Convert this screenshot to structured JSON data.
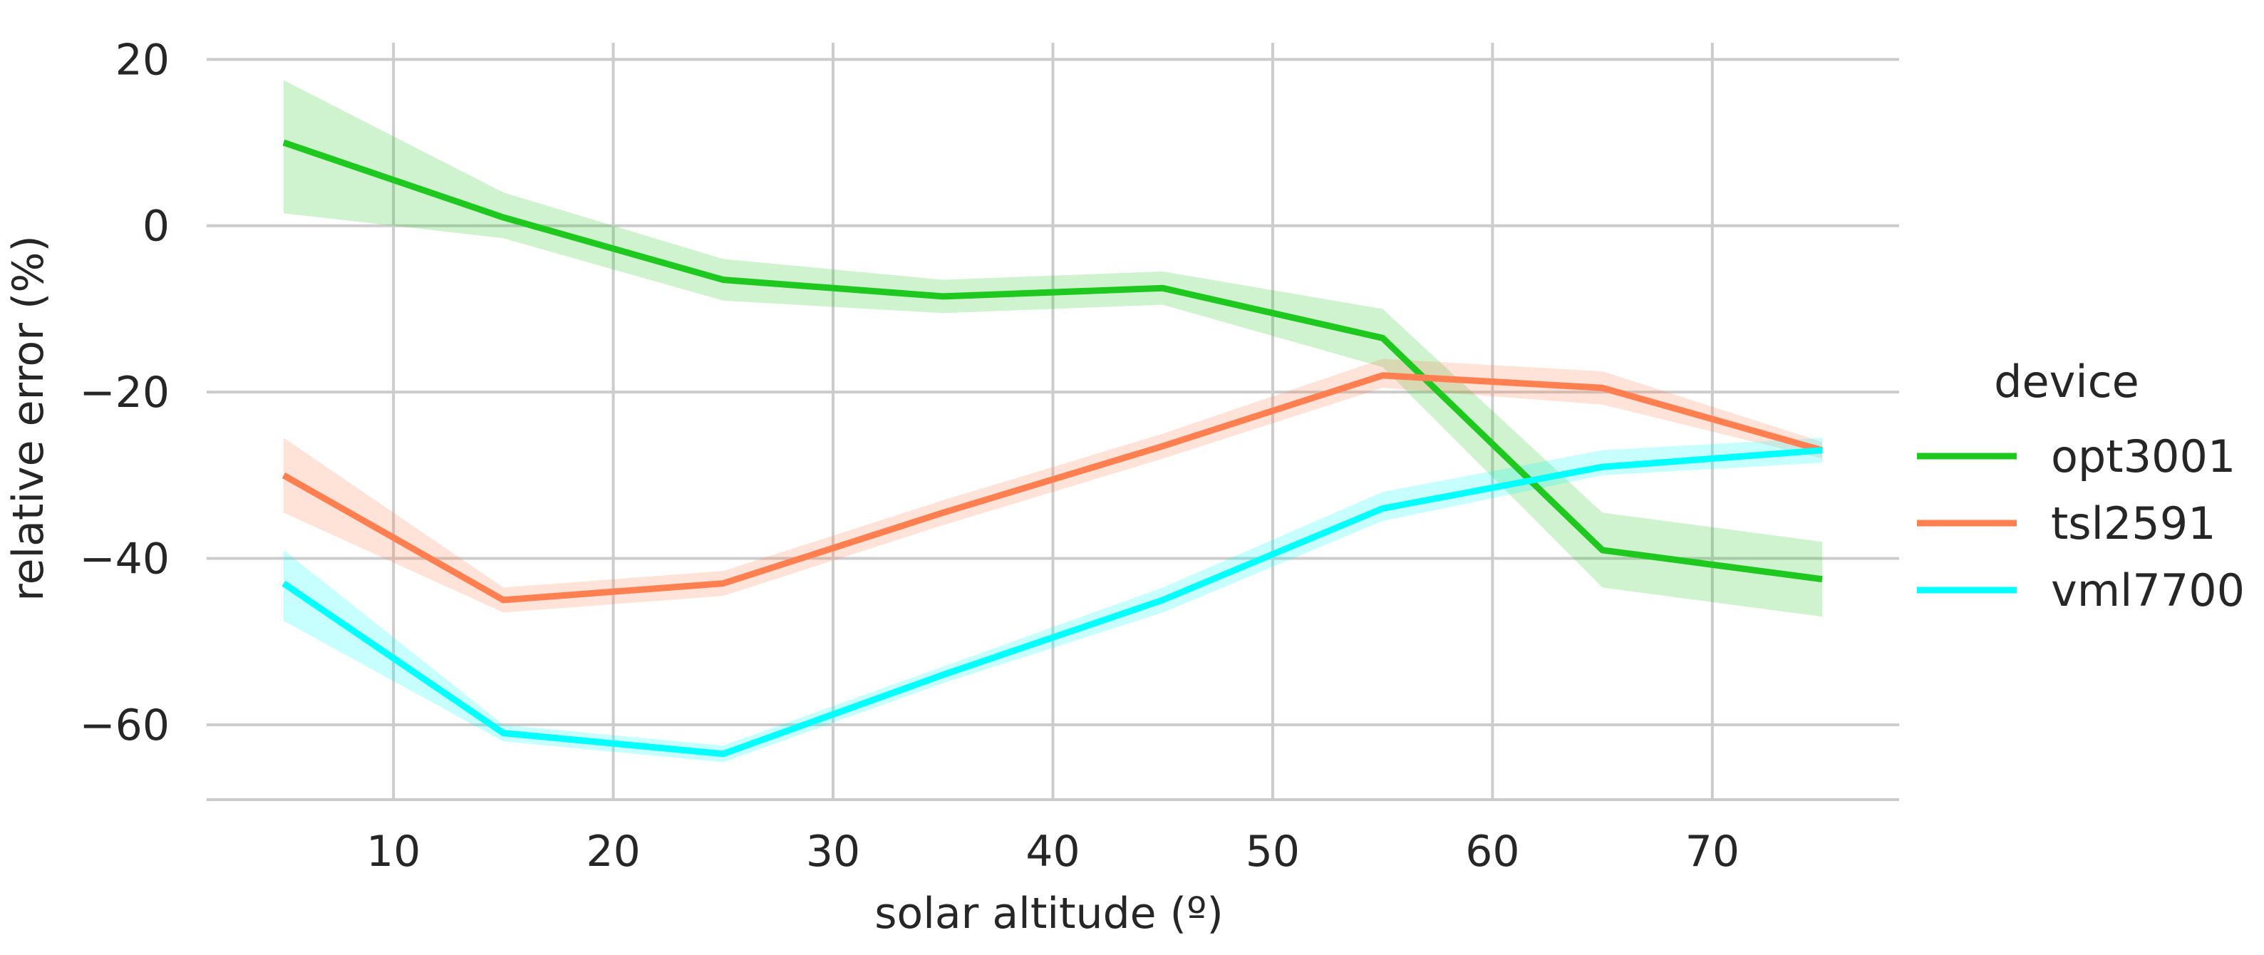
{
  "chart_data": {
    "type": "line",
    "title": "",
    "xlabel": "solar altitude (º)",
    "ylabel": "relative error (%)",
    "xlim": [
      1.5,
      78.5
    ],
    "ylim": [
      -69,
      22
    ],
    "xticks": [
      10,
      20,
      30,
      40,
      50,
      60,
      70
    ],
    "yticks": [
      20,
      0,
      -20,
      -40,
      -60
    ],
    "ytick_labels": [
      "20",
      "0",
      "−20",
      "−40",
      "−60"
    ],
    "xtick_labels": [
      "10",
      "20",
      "30",
      "40",
      "50",
      "60",
      "70"
    ],
    "grid": true,
    "x": [
      5,
      15,
      25,
      35,
      45,
      55,
      65,
      75
    ],
    "legend": {
      "title": "device",
      "position": "center-right"
    },
    "series": [
      {
        "name": "opt3001",
        "color": "#1ec81e",
        "values": [
          10,
          1,
          -6.5,
          -8.5,
          -7.5,
          -13.5,
          -39,
          -42.5
        ],
        "lower": [
          1.5,
          -1.5,
          -9,
          -10.5,
          -9.5,
          -17,
          -43.5,
          -47
        ],
        "upper": [
          17.5,
          4,
          -4,
          -6.5,
          -5.5,
          -10,
          -34.5,
          -38
        ]
      },
      {
        "name": "tsl2591",
        "color": "#ff7f50",
        "values": [
          -30,
          -45,
          -43,
          -34.5,
          -26.5,
          -18,
          -19.5,
          -27
        ],
        "lower": [
          -34.5,
          -46.5,
          -44.5,
          -36,
          -28,
          -19.5,
          -21.5,
          -28
        ],
        "upper": [
          -25.5,
          -43.5,
          -41.5,
          -33,
          -25,
          -16,
          -17.5,
          -26
        ]
      },
      {
        "name": "vml7700",
        "color": "#00ffff",
        "values": [
          -43,
          -61,
          -63.5,
          -54,
          -45,
          -34,
          -29,
          -27
        ],
        "lower": [
          -47.5,
          -62,
          -64.5,
          -55,
          -46.5,
          -35.5,
          -30,
          -28.5
        ],
        "upper": [
          -39,
          -60,
          -62.5,
          -53,
          -43.5,
          -32,
          -27,
          -25.5
        ]
      }
    ]
  }
}
